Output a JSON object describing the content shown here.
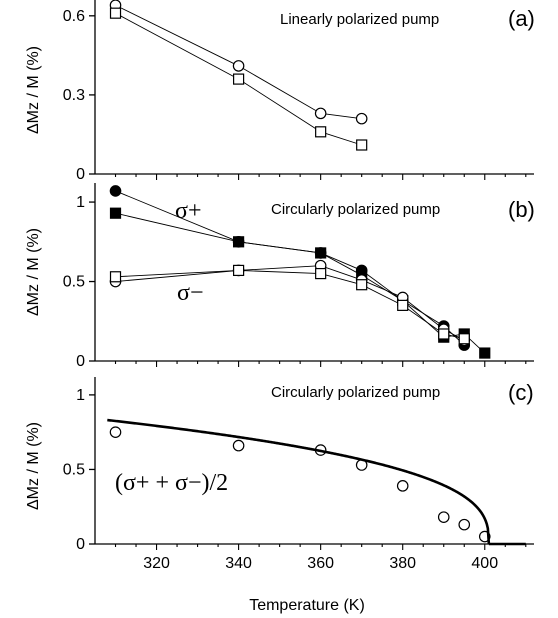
{
  "chart_data": [
    {
      "type": "line",
      "panel_label": "(a)",
      "annotation": "Linearly polarized pump",
      "ylabel": "ΔMz / M (%)",
      "xlim": [
        305,
        412
      ],
      "ylim": [
        0,
        0.66
      ],
      "yticks": [
        "0",
        "0.3",
        "0.6"
      ],
      "series": [
        {
          "marker": "open-circle",
          "x": [
            310,
            340,
            360,
            370
          ],
          "y": [
            0.64,
            0.41,
            0.23,
            0.21
          ]
        },
        {
          "marker": "open-square",
          "x": [
            310,
            340,
            360,
            370
          ],
          "y": [
            0.61,
            0.36,
            0.16,
            0.11
          ]
        }
      ]
    },
    {
      "type": "line",
      "panel_label": "(b)",
      "annotation": "Circularly polarized pump",
      "ylabel": "ΔMz / M (%)",
      "xlim": [
        305,
        412
      ],
      "ylim": [
        0,
        1.12
      ],
      "yticks": [
        "0",
        "0.5",
        "1"
      ],
      "series_labels": [
        "σ+",
        "σ−"
      ],
      "series": [
        {
          "marker": "filled-circle",
          "x": [
            310,
            340,
            360,
            370,
            380,
            390,
            395
          ],
          "y": [
            1.07,
            0.75,
            0.68,
            0.57,
            0.38,
            0.22,
            0.1
          ]
        },
        {
          "marker": "filled-square",
          "x": [
            310,
            340,
            360,
            370,
            380,
            390,
            395,
            400
          ],
          "y": [
            0.93,
            0.75,
            0.68,
            0.54,
            0.38,
            0.15,
            0.17,
            0.05
          ]
        },
        {
          "marker": "open-circle",
          "x": [
            310,
            340,
            360,
            370,
            380,
            390,
            395
          ],
          "y": [
            0.5,
            0.57,
            0.6,
            0.51,
            0.4,
            0.2,
            0.13
          ]
        },
        {
          "marker": "open-square",
          "x": [
            310,
            340,
            360,
            370,
            380,
            390,
            395
          ],
          "y": [
            0.53,
            0.57,
            0.55,
            0.48,
            0.35,
            0.17,
            0.14
          ]
        }
      ]
    },
    {
      "type": "scatter",
      "panel_label": "(c)",
      "annotation": "Circularly polarized pump",
      "formula": "(σ+ + σ−)/2",
      "ylabel": "ΔMz / M (%)",
      "xlabel": "Temperature (K)",
      "xlim": [
        305,
        412
      ],
      "ylim": [
        0,
        1.12
      ],
      "yticks": [
        "0",
        "0.5",
        "1"
      ],
      "xticks": [
        "320",
        "340",
        "360",
        "380",
        "400"
      ],
      "series": [
        {
          "marker": "open-circle",
          "x": [
            310,
            340,
            360,
            370,
            380,
            390,
            395,
            400
          ],
          "y": [
            0.75,
            0.66,
            0.63,
            0.53,
            0.39,
            0.18,
            0.13,
            0.05
          ]
        }
      ],
      "fit": {
        "style": "solid-thick",
        "Tc": 401,
        "A": 0.825,
        "T0": 310,
        "beta": 0.35,
        "tail_x": [
          401,
          410
        ]
      }
    }
  ]
}
